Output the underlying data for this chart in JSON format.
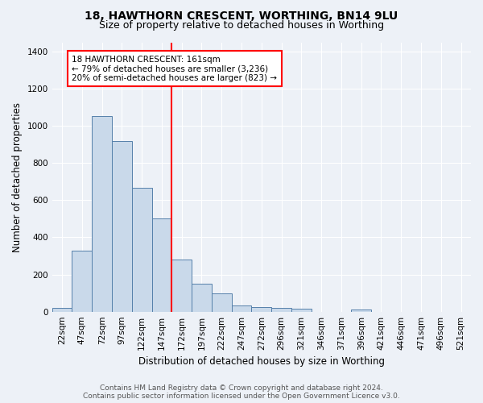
{
  "title1": "18, HAWTHORN CRESCENT, WORTHING, BN14 9LU",
  "title2": "Size of property relative to detached houses in Worthing",
  "xlabel": "Distribution of detached houses by size in Worthing",
  "ylabel": "Number of detached properties",
  "categories": [
    "22sqm",
    "47sqm",
    "72sqm",
    "97sqm",
    "122sqm",
    "147sqm",
    "172sqm",
    "197sqm",
    "222sqm",
    "247sqm",
    "272sqm",
    "296sqm",
    "321sqm",
    "346sqm",
    "371sqm",
    "396sqm",
    "421sqm",
    "446sqm",
    "471sqm",
    "496sqm",
    "521sqm"
  ],
  "values": [
    20,
    330,
    1052,
    920,
    665,
    500,
    280,
    150,
    100,
    35,
    25,
    20,
    15,
    0,
    0,
    10,
    0,
    0,
    0,
    0,
    0
  ],
  "bar_color": "#c9d9ea",
  "bar_edge_color": "#5580aa",
  "background_color": "#edf1f7",
  "vline_color": "red",
  "annotation_text": "18 HAWTHORN CRESCENT: 161sqm\n← 79% of detached houses are smaller (3,236)\n20% of semi-detached houses are larger (823) →",
  "annotation_box_color": "white",
  "annotation_box_edge": "red",
  "ylim": [
    0,
    1450
  ],
  "yticks": [
    0,
    200,
    400,
    600,
    800,
    1000,
    1200,
    1400
  ],
  "footer": "Contains HM Land Registry data © Crown copyright and database right 2024.\nContains public sector information licensed under the Open Government Licence v3.0.",
  "title1_fontsize": 10,
  "title2_fontsize": 9,
  "xlabel_fontsize": 8.5,
  "ylabel_fontsize": 8.5,
  "tick_fontsize": 7.5,
  "footer_fontsize": 6.5,
  "annot_fontsize": 7.5
}
